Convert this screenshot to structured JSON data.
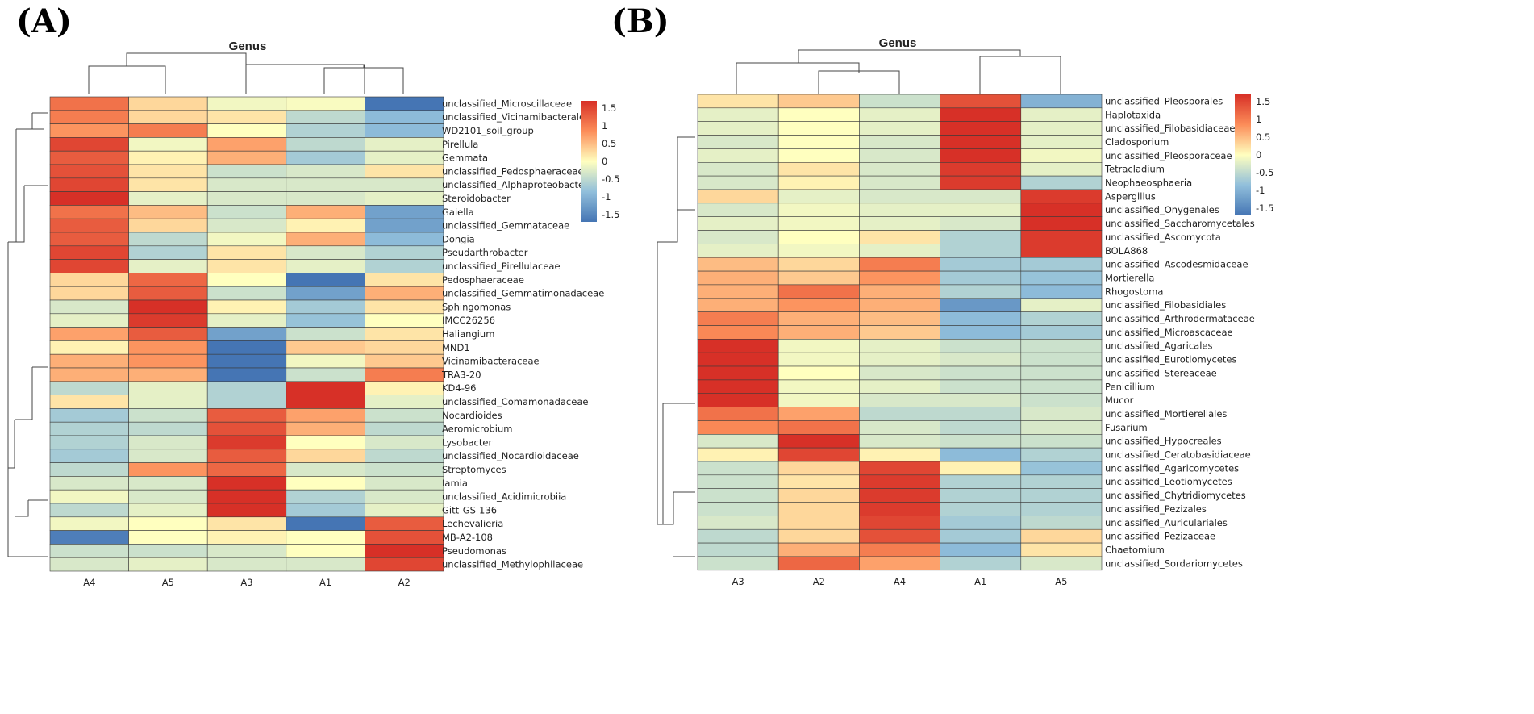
{
  "chart_data": [
    {
      "panel_label": "(A)",
      "type": "heatmap",
      "title": "Genus",
      "columns": [
        "A4",
        "A5",
        "A3",
        "A1",
        "A2"
      ],
      "rows": [
        {
          "name": "unclassified_Microscillaceae",
          "values": [
            1.1,
            0.3,
            -0.1,
            -0.05,
            -1.7
          ]
        },
        {
          "name": "unclassified_Vicinamibacterales",
          "values": [
            1.0,
            0.3,
            0.2,
            -0.5,
            -0.9
          ]
        },
        {
          "name": "WD2101_soil_group",
          "values": [
            0.8,
            1.0,
            0.0,
            -0.6,
            -0.9
          ]
        },
        {
          "name": "Pirellula",
          "values": [
            1.5,
            -0.1,
            0.7,
            -0.5,
            -0.2
          ]
        },
        {
          "name": "Gemmata",
          "values": [
            1.3,
            0.1,
            0.6,
            -0.7,
            -0.2
          ]
        },
        {
          "name": "unclassified_Pedosphaeraceae",
          "values": [
            1.4,
            0.2,
            -0.4,
            -0.3,
            0.2
          ]
        },
        {
          "name": "unclassified_Alphaproteobacteria",
          "values": [
            1.5,
            0.2,
            -0.3,
            -0.3,
            -0.3
          ]
        },
        {
          "name": "Steroidobacter",
          "values": [
            1.7,
            -0.2,
            -0.3,
            -0.3,
            -0.2
          ]
        },
        {
          "name": "Gaiella",
          "values": [
            1.1,
            0.5,
            -0.4,
            0.6,
            -1.2
          ]
        },
        {
          "name": "unclassified_Gemmataceae",
          "values": [
            1.3,
            0.3,
            -0.3,
            0.1,
            -1.2
          ]
        },
        {
          "name": "Dongia",
          "values": [
            1.3,
            -0.5,
            -0.1,
            0.6,
            -0.9
          ]
        },
        {
          "name": "Pseudarthrobacter",
          "values": [
            1.5,
            -0.6,
            0.2,
            -0.3,
            -0.6
          ]
        },
        {
          "name": "unclassified_Pirellulaceae",
          "values": [
            1.5,
            -0.2,
            0.2,
            -0.2,
            -0.6
          ]
        },
        {
          "name": "Pedosphaeraceae",
          "values": [
            0.3,
            1.2,
            0.0,
            -1.7,
            0.2
          ]
        },
        {
          "name": "unclassified_Gemmatimonadaceae",
          "values": [
            0.3,
            1.3,
            -0.4,
            -1.2,
            0.6
          ]
        },
        {
          "name": "Sphingomonas",
          "values": [
            -0.3,
            1.7,
            0.1,
            -0.7,
            0.2
          ]
        },
        {
          "name": "IMCC26256",
          "values": [
            -0.2,
            1.6,
            -0.2,
            -0.8,
            0.0
          ]
        },
        {
          "name": "Haliangium",
          "values": [
            0.7,
            1.3,
            -1.2,
            -0.4,
            0.2
          ]
        },
        {
          "name": "MND1",
          "values": [
            0.1,
            0.8,
            -1.7,
            0.4,
            0.3
          ]
        },
        {
          "name": "Vicinamibacteraceae",
          "values": [
            0.6,
            0.8,
            -1.7,
            -0.1,
            0.4
          ]
        },
        {
          "name": "TRA3-20",
          "values": [
            0.6,
            0.6,
            -1.7,
            -0.4,
            1.0
          ]
        },
        {
          "name": "KD4-96",
          "values": [
            -0.5,
            -0.2,
            -0.6,
            1.7,
            0.1
          ]
        },
        {
          "name": "unclassified_Comamonadaceae",
          "values": [
            0.2,
            -0.2,
            -0.6,
            1.7,
            -0.2
          ]
        },
        {
          "name": "Nocardioides",
          "values": [
            -0.7,
            -0.4,
            1.3,
            0.7,
            -0.4
          ]
        },
        {
          "name": "Aeromicrobium",
          "values": [
            -0.6,
            -0.5,
            1.4,
            0.6,
            -0.5
          ]
        },
        {
          "name": "Lysobacter",
          "values": [
            -0.6,
            -0.3,
            1.6,
            0.0,
            -0.3
          ]
        },
        {
          "name": "unclassified_Nocardioidaceae",
          "values": [
            -0.7,
            -0.3,
            1.3,
            0.3,
            -0.5
          ]
        },
        {
          "name": "Streptomyces",
          "values": [
            -0.5,
            0.8,
            1.2,
            -0.3,
            -0.4
          ]
        },
        {
          "name": "Iamia",
          "values": [
            -0.3,
            -0.3,
            1.7,
            0.0,
            -0.3
          ]
        },
        {
          "name": "unclassified_Acidimicrobiia",
          "values": [
            -0.1,
            -0.3,
            1.7,
            -0.6,
            -0.3
          ]
        },
        {
          "name": "Gitt-GS-136",
          "values": [
            -0.5,
            -0.2,
            1.7,
            -0.7,
            -0.2
          ]
        },
        {
          "name": "Lechevalieria",
          "values": [
            -0.1,
            0.0,
            0.2,
            -1.7,
            1.3
          ]
        },
        {
          "name": "MB-A2-108",
          "values": [
            -1.6,
            0.0,
            0.1,
            0.0,
            1.4
          ]
        },
        {
          "name": "Pseudomonas",
          "values": [
            -0.4,
            -0.4,
            -0.3,
            0.0,
            1.7
          ]
        },
        {
          "name": "unclassified_Methylophilaceae",
          "values": [
            -0.3,
            -0.2,
            -0.3,
            -0.3,
            1.5
          ]
        }
      ],
      "color_scale": {
        "min": -1.7,
        "max": 1.7,
        "ticks": [
          1.5,
          1,
          0.5,
          0,
          -0.5,
          -1,
          -1.5
        ],
        "tick_labels": [
          "1.5",
          "1",
          "0.5",
          "0",
          "-0.5",
          "-1",
          "-1.5"
        ]
      }
    },
    {
      "panel_label": "(B)",
      "type": "heatmap",
      "title": "Genus",
      "columns": [
        "A3",
        "A2",
        "A4",
        "A1",
        "A5"
      ],
      "rows": [
        {
          "name": "unclassified_Pleosporales",
          "values": [
            0.2,
            0.4,
            -0.4,
            1.4,
            -1.0
          ]
        },
        {
          "name": "Haplotaxida",
          "values": [
            -0.2,
            0.0,
            -0.2,
            1.7,
            -0.2
          ]
        },
        {
          "name": "unclassified_Filobasidiaceae",
          "values": [
            -0.2,
            0.0,
            -0.2,
            1.7,
            -0.2
          ]
        },
        {
          "name": "Cladosporium",
          "values": [
            -0.3,
            0.0,
            -0.3,
            1.7,
            -0.2
          ]
        },
        {
          "name": "unclassified_Pleosporaceae",
          "values": [
            -0.2,
            0.0,
            -0.3,
            1.7,
            -0.1
          ]
        },
        {
          "name": "Tetracladium",
          "values": [
            -0.3,
            0.2,
            -0.3,
            1.6,
            -0.2
          ]
        },
        {
          "name": "Neophaeosphaeria",
          "values": [
            -0.3,
            0.1,
            -0.3,
            1.6,
            -0.6
          ]
        },
        {
          "name": "Aspergillus",
          "values": [
            0.3,
            -0.2,
            -0.3,
            -0.3,
            1.6
          ]
        },
        {
          "name": "unclassified_Onygenales",
          "values": [
            -0.3,
            -0.1,
            -0.2,
            -0.2,
            1.7
          ]
        },
        {
          "name": "unclassified_Saccharomycetales",
          "values": [
            -0.2,
            -0.1,
            -0.2,
            -0.3,
            1.7
          ]
        },
        {
          "name": "unclassified_Ascomycota",
          "values": [
            -0.3,
            0.0,
            0.2,
            -0.6,
            1.6
          ]
        },
        {
          "name": "BOLA868",
          "values": [
            -0.2,
            -0.1,
            -0.2,
            -0.6,
            1.6
          ]
        },
        {
          "name": "unclassified_Ascodesmidaceae",
          "values": [
            0.5,
            0.3,
            1.0,
            -0.7,
            -0.7
          ]
        },
        {
          "name": "Mortierella",
          "values": [
            0.6,
            0.4,
            0.8,
            -0.7,
            -0.8
          ]
        },
        {
          "name": "Rhogostoma",
          "values": [
            0.6,
            1.1,
            0.6,
            -0.6,
            -0.9
          ]
        },
        {
          "name": "unclassified_Filobasidiales",
          "values": [
            0.6,
            0.8,
            0.6,
            -1.3,
            -0.2
          ]
        },
        {
          "name": "unclassified_Arthrodermataceae",
          "values": [
            1.0,
            0.6,
            0.5,
            -0.9,
            -0.6
          ]
        },
        {
          "name": "unclassified_Microascaceae",
          "values": [
            0.9,
            0.6,
            0.4,
            -0.9,
            -0.7
          ]
        },
        {
          "name": "unclassified_Agaricales",
          "values": [
            1.7,
            -0.1,
            -0.2,
            -0.4,
            -0.4
          ]
        },
        {
          "name": "unclassified_Eurotiomycetes",
          "values": [
            1.7,
            -0.1,
            -0.2,
            -0.3,
            -0.4
          ]
        },
        {
          "name": "unclassified_Stereaceae",
          "values": [
            1.7,
            0.0,
            -0.3,
            -0.4,
            -0.4
          ]
        },
        {
          "name": "Penicillium",
          "values": [
            1.7,
            -0.1,
            -0.2,
            -0.4,
            -0.4
          ]
        },
        {
          "name": "Mucor",
          "values": [
            1.7,
            -0.1,
            -0.3,
            -0.3,
            -0.4
          ]
        },
        {
          "name": "unclassified_Mortierellales",
          "values": [
            1.1,
            0.7,
            -0.5,
            -0.5,
            -0.3
          ]
        },
        {
          "name": "Fusarium",
          "values": [
            0.9,
            1.1,
            -0.3,
            -0.5,
            -0.3
          ]
        },
        {
          "name": "unclassified_Hypocreales",
          "values": [
            -0.3,
            1.7,
            -0.3,
            -0.4,
            -0.4
          ]
        },
        {
          "name": "unclassified_Ceratobasidiaceae",
          "values": [
            0.1,
            1.5,
            0.1,
            -0.9,
            -0.6
          ]
        },
        {
          "name": "unclassified_Agaricomycetes",
          "values": [
            -0.4,
            0.3,
            1.5,
            0.1,
            -0.8
          ]
        },
        {
          "name": "unclassified_Leotiomycetes",
          "values": [
            -0.4,
            0.2,
            1.6,
            -0.6,
            -0.6
          ]
        },
        {
          "name": "unclassified_Chytridiomycetes",
          "values": [
            -0.4,
            0.3,
            1.6,
            -0.6,
            -0.6
          ]
        },
        {
          "name": "unclassified_Pezizales",
          "values": [
            -0.4,
            0.3,
            1.6,
            -0.6,
            -0.6
          ]
        },
        {
          "name": "unclassified_Auriculariales",
          "values": [
            -0.3,
            0.3,
            1.5,
            -0.7,
            -0.5
          ]
        },
        {
          "name": "unclassified_Pezizaceae",
          "values": [
            -0.5,
            0.3,
            1.4,
            -0.7,
            0.3
          ]
        },
        {
          "name": "Chaetomium",
          "values": [
            -0.5,
            0.6,
            1.0,
            -0.9,
            0.2
          ]
        },
        {
          "name": "unclassified_Sordariomycetes",
          "values": [
            -0.4,
            1.2,
            0.7,
            -0.6,
            -0.3
          ]
        }
      ],
      "color_scale": {
        "min": -1.7,
        "max": 1.7,
        "ticks": [
          1.5,
          1,
          0.5,
          0,
          -0.5,
          -1,
          -1.5
        ],
        "tick_labels": [
          "1.5",
          "1",
          "0.5",
          "0",
          "-0.5",
          "-1",
          "-1.5"
        ]
      }
    }
  ]
}
